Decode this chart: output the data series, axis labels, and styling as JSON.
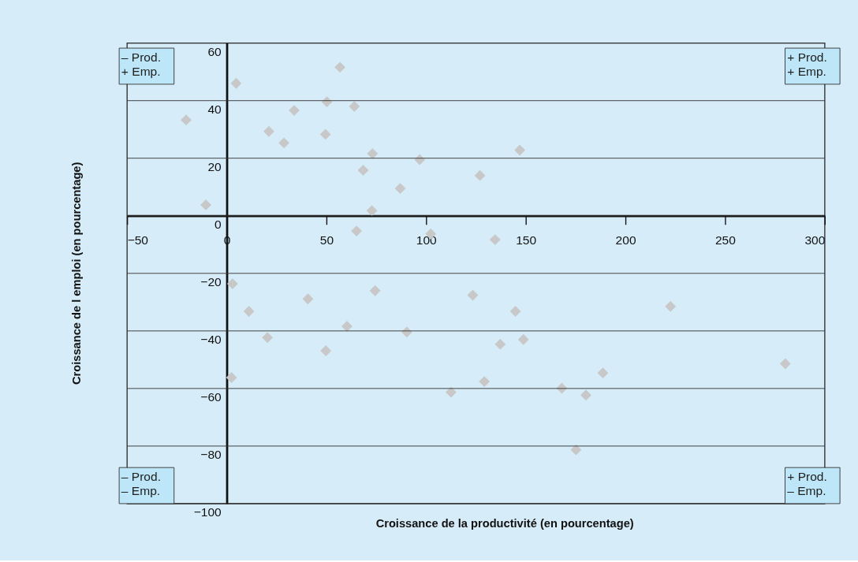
{
  "chart_data": {
    "type": "scatter",
    "xlabel": "Croissance de la productivité (en pourcentage)",
    "ylabel": "Croissance de l emploi (en pourcentage)",
    "x": [
      -20.4,
      -10.5,
      4.7,
      56.8,
      21.1,
      28.7,
      33.8,
      50.2,
      64,
      49.5,
      73.1,
      68.4,
      96.8,
      147,
      127,
      87,
      72.8,
      65.1,
      102.3,
      134.6,
      2.9,
      11.1,
      40.7,
      74.4,
      20.4,
      60.3,
      49.7,
      90.3,
      2.4,
      123.4,
      144.8,
      137.2,
      148.8,
      129.2,
      112.5,
      168.1,
      180.2,
      188.7,
      222.6,
      175.2,
      280.2
    ],
    "values": [
      33.3,
      3.8,
      46,
      51.6,
      29.3,
      25.3,
      36.6,
      39.6,
      38,
      28.3,
      21.6,
      15.8,
      19.5,
      22.8,
      14,
      9.5,
      1.8,
      -5.3,
      -6.3,
      -8.3,
      -23.6,
      -33.2,
      -28.9,
      -26,
      -42.3,
      -38.4,
      -46.9,
      -40.4,
      -56.2,
      -27.6,
      -33.2,
      -44.6,
      -43,
      -57.6,
      -61.3,
      -59.9,
      -62.3,
      -54.6,
      -31.5,
      -81.3,
      -51.4
    ],
    "color": "#c8c8c8",
    "marker": "diamond",
    "xlim": [
      -50,
      300
    ],
    "xticks": [
      -50,
      0,
      50,
      100,
      150,
      200,
      250,
      300
    ],
    "ylim": [
      -100,
      60
    ],
    "yticks": [
      -100,
      -80,
      -60,
      -40,
      -20,
      0,
      20,
      40,
      60
    ],
    "grid": "y",
    "annotations": [
      "– Prod.\n+ Emp.",
      "+ Prod.\n+ Emp.",
      "– Prod.\n– Emp.",
      "+ Prod.\n– Emp."
    ]
  }
}
